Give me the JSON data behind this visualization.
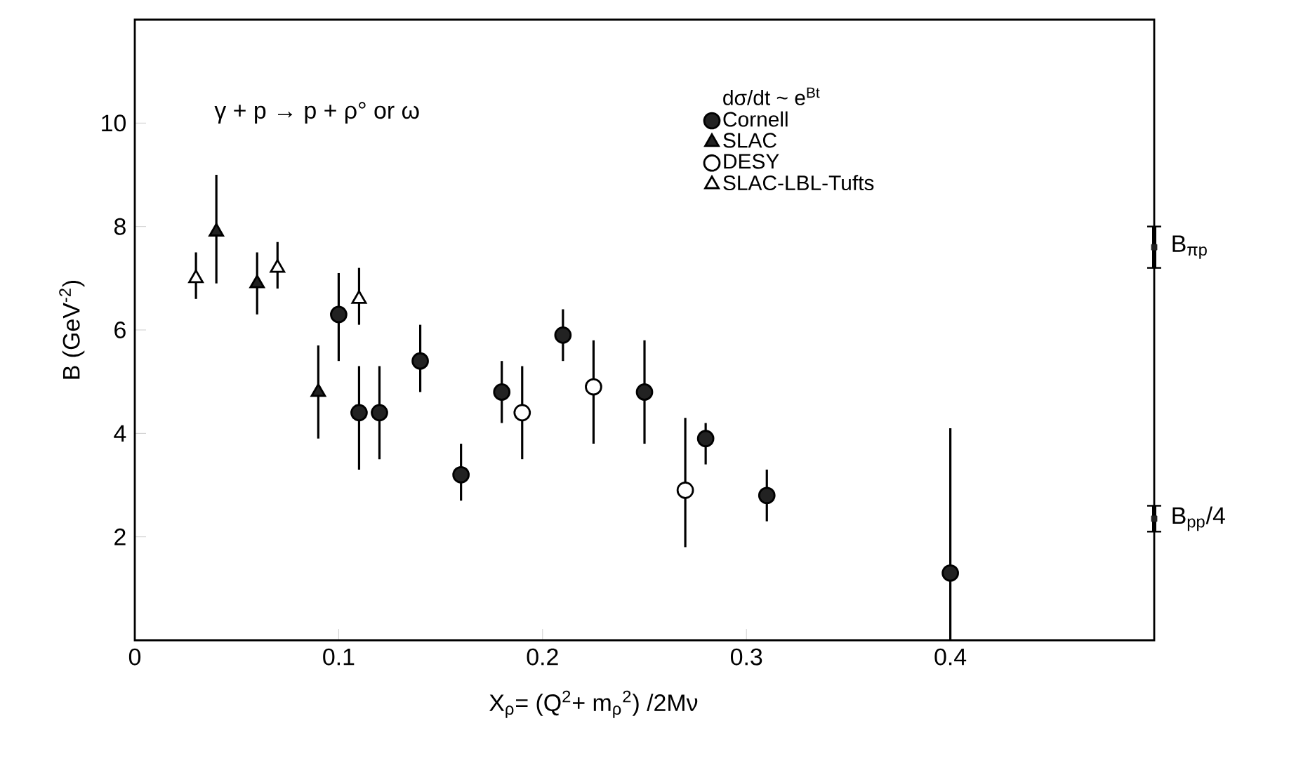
{
  "chart_data": {
    "type": "scatter",
    "xlabel": "X$_{ρ}$= (Q$^{2}$+ m$_{ρ}$$^{2}$) /2Mν",
    "ylabel": "B (GeV$^{-2}$)",
    "legend_title": "dσ/dt ~ e$^{Bt}$",
    "annotations": [
      "γ + p → p + ρ° or ω"
    ],
    "xlim": [
      0,
      0.5
    ],
    "ylim": [
      0,
      12
    ],
    "xticks": [
      0,
      0.1,
      0.2,
      0.3,
      0.4
    ],
    "yticks": [
      2,
      4,
      6,
      8,
      10
    ],
    "legend": "top right",
    "series": [
      {
        "name": "Cornell",
        "color": "#222222",
        "marker": "circle",
        "x": [
          0.1,
          0.11,
          0.12,
          0.14,
          0.16,
          0.18,
          0.21,
          0.25,
          0.28,
          0.31,
          0.4
        ],
        "values": [
          6.3,
          4.4,
          4.4,
          5.4,
          3.2,
          4.8,
          5.9,
          4.8,
          3.9,
          2.8,
          1.3
        ],
        "errors": [
          [
            5.4,
            7.1
          ],
          [
            3.3,
            5.3
          ],
          [
            3.5,
            5.3
          ],
          [
            4.8,
            6.1
          ],
          [
            2.7,
            3.8
          ],
          [
            4.2,
            5.4
          ],
          [
            5.4,
            6.4
          ],
          [
            3.8,
            5.8
          ],
          [
            3.4,
            4.2
          ],
          [
            2.3,
            3.3
          ],
          [
            0,
            4.1
          ]
        ]
      },
      {
        "name": "SLAC",
        "color": "#222222",
        "marker": "triangle",
        "x": [
          0.04,
          0.06,
          0.09
        ],
        "values": [
          7.9,
          6.9,
          4.8
        ],
        "errors": [
          [
            6.9,
            9.0
          ],
          [
            6.3,
            7.5
          ],
          [
            3.9,
            5.7
          ]
        ]
      },
      {
        "name": "DESY",
        "color": "#ffffff",
        "marker": "circle",
        "x": [
          0.19,
          0.225,
          0.27
        ],
        "values": [
          4.4,
          4.9,
          2.9
        ],
        "errors": [
          [
            3.5,
            5.3
          ],
          [
            3.8,
            5.8
          ],
          [
            1.8,
            4.3
          ]
        ]
      },
      {
        "name": "SLAC-LBL-Tufts",
        "color": "#ffffff",
        "marker": "triangle",
        "x": [
          0.03,
          0.07,
          0.11
        ],
        "values": [
          7.0,
          7.2,
          6.6
        ],
        "errors": [
          [
            6.6,
            7.5
          ],
          [
            6.8,
            7.7
          ],
          [
            6.1,
            7.2
          ]
        ]
      },
      {
        "name": "B$_{πp}$",
        "color": "#222222",
        "marker": "square",
        "x": [
          0.5
        ],
        "values": [
          7.6
        ],
        "errors": [
          [
            7.2,
            8.0
          ]
        ]
      },
      {
        "name": "B$_{pp}$/4",
        "color": "#222222",
        "marker": "square",
        "x": [
          0.5
        ],
        "values": [
          2.35
        ],
        "errors": [
          [
            2.1,
            2.6
          ]
        ]
      }
    ]
  }
}
